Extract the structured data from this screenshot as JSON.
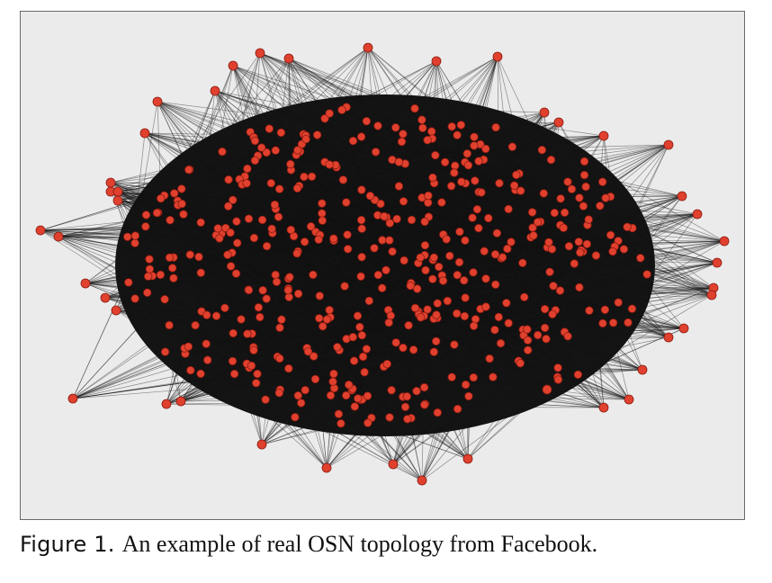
{
  "figure": {
    "caption_label": "Figure 1.",
    "caption_text": "An example of real OSN topology from Facebook.",
    "colors": {
      "background": "#ebebeb",
      "frame_border": "#6a6a6a",
      "edge": "#141414",
      "node_fill": "#e0412e",
      "node_stroke": "#8a1a10"
    }
  }
}
